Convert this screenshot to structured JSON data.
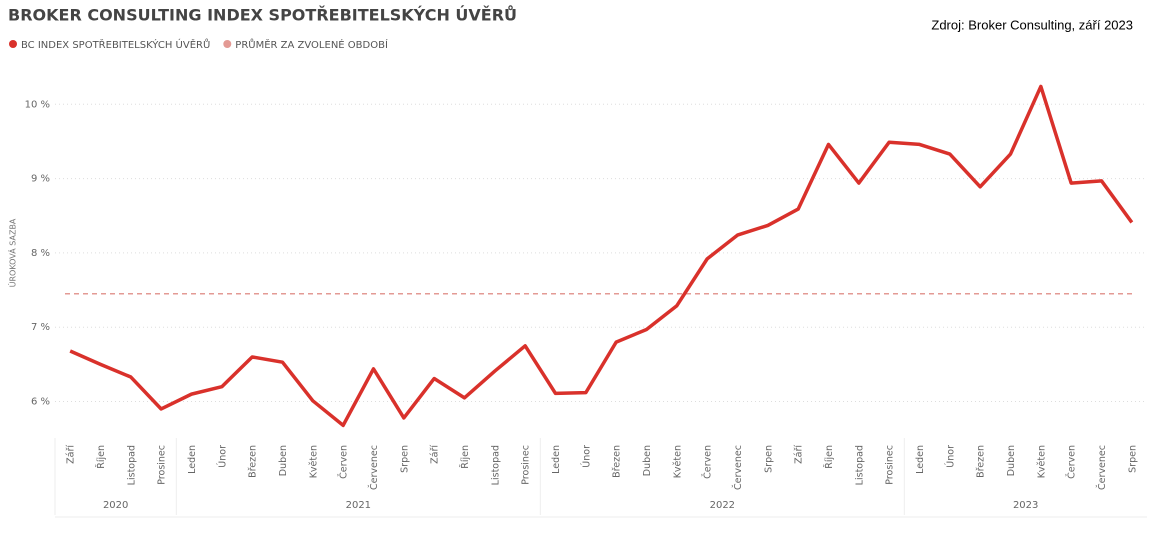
{
  "chart_data": {
    "type": "line",
    "title": "BROKER CONSULTING INDEX SPOTŘEBITELSKÝCH ÚVĚRŮ",
    "source": "Zdroj: Broker Consulting, září 2023",
    "y_label": "ÚROKOVÁ SAZBA",
    "categories": [
      "Září",
      "Říjen",
      "Listopad",
      "Prosinec",
      "Leden",
      "Únor",
      "Březen",
      "Duben",
      "Květen",
      "Červen",
      "Červenec",
      "Srpen",
      "Září",
      "Říjen",
      "Listopad",
      "Prosinec",
      "Leden",
      "Únor",
      "Březen",
      "Duben",
      "Květen",
      "Červen",
      "Červenec",
      "Srpen",
      "Září",
      "Říjen",
      "Listopad",
      "Prosinec",
      "Leden",
      "Únor",
      "Březen",
      "Duben",
      "Květen",
      "Červen",
      "Červenec",
      "Srpen"
    ],
    "groups": [
      {
        "label": "2020",
        "span": 4
      },
      {
        "label": "2021",
        "span": 12
      },
      {
        "label": "2022",
        "span": 12
      },
      {
        "label": "2023",
        "span": 8
      }
    ],
    "series": [
      {
        "name": "BC INDEX SPOTŘEBITELSKÝCH ÚVĚRŮ",
        "color": "#d9312b",
        "values": [
          6.68,
          6.5,
          6.33,
          5.9,
          6.1,
          6.2,
          6.6,
          6.53,
          6.01,
          5.68,
          6.44,
          5.78,
          6.31,
          6.05,
          6.41,
          6.75,
          6.11,
          6.12,
          6.8,
          6.97,
          7.29,
          7.92,
          8.24,
          8.37,
          8.59,
          9.46,
          8.94,
          9.49,
          9.46,
          9.33,
          8.89,
          9.33,
          10.24,
          8.94,
          8.97,
          8.41
        ]
      }
    ],
    "average": {
      "name": "PRŮMĚR ZA ZVOLENÉ OBDOBÍ",
      "color": "#e39a94",
      "value": 7.45
    },
    "ylim": [
      5.55,
      10.3
    ],
    "yticks": [
      {
        "value": 6,
        "label": "6 %"
      },
      {
        "value": 7,
        "label": "7 %"
      },
      {
        "value": 8,
        "label": "8 %"
      },
      {
        "value": 9,
        "label": "9 %"
      },
      {
        "value": 10,
        "label": "10 %"
      }
    ],
    "grid": true
  }
}
